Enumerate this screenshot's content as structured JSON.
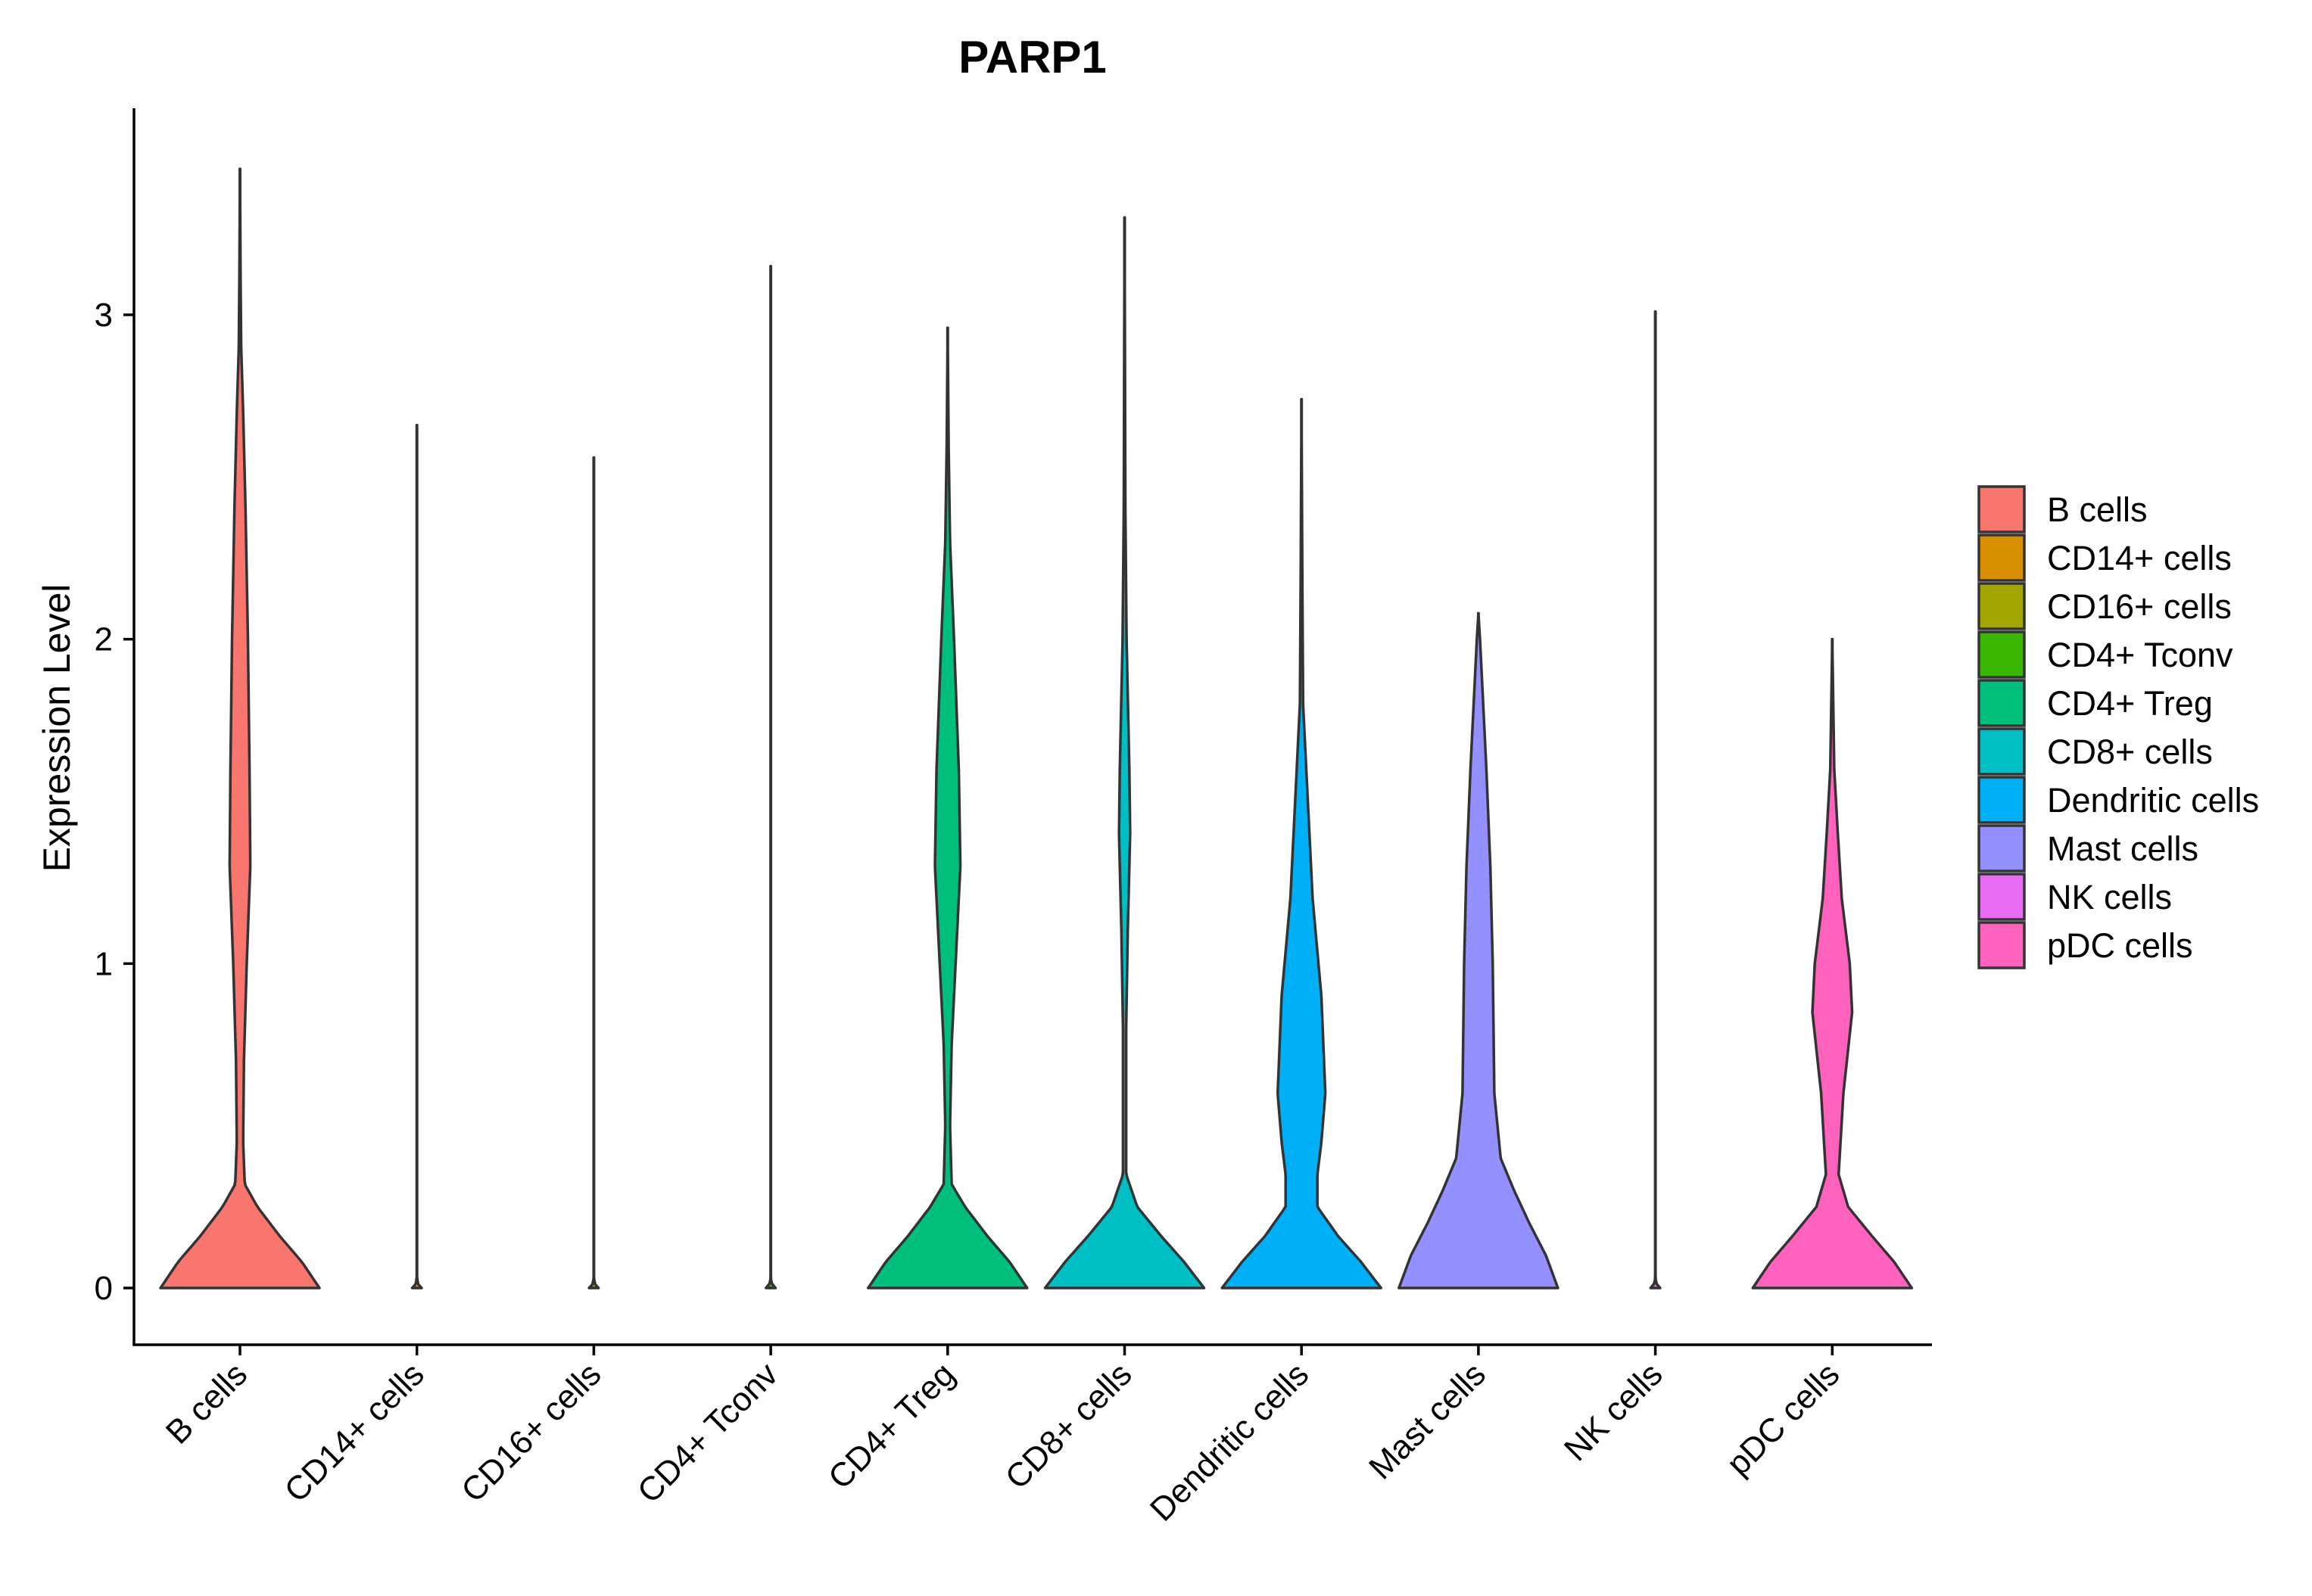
{
  "chart_data": {
    "type": "violin",
    "title": "PARP1",
    "xlabel": "",
    "ylabel": "Expression Level",
    "ylim": [
      -0.17,
      3.63
    ],
    "yticks": [
      0,
      1,
      2,
      3
    ],
    "yticks_labels": [
      "0",
      "1",
      "2",
      "3"
    ],
    "categories": [
      "B cells",
      "CD14+ cells",
      "CD16+ cells",
      "CD4+ Tconv",
      "CD4+ Treg",
      "CD8+ cells",
      "Dendritic cells",
      "Mast cells",
      "NK cells",
      "pDC cells"
    ],
    "colors": [
      "#F8766D",
      "#D89000",
      "#A3A500",
      "#39B600",
      "#00BF7D",
      "#00BFC4",
      "#00B0F6",
      "#9590FF",
      "#E76BF3",
      "#FF62BC"
    ],
    "violin_max": [
      3.45,
      2.66,
      2.56,
      3.15,
      2.96,
      3.3,
      2.74,
      2.08,
      3.01,
      2.0
    ],
    "density_profiles": [
      [
        [
          0,
          1.0
        ],
        [
          0.08,
          0.78
        ],
        [
          0.16,
          0.5
        ],
        [
          0.25,
          0.22
        ],
        [
          0.32,
          0.06
        ],
        [
          0.45,
          0.04
        ],
        [
          0.7,
          0.05
        ],
        [
          1.0,
          0.085
        ],
        [
          1.3,
          0.13
        ],
        [
          1.6,
          0.12
        ],
        [
          2.0,
          0.1
        ],
        [
          2.4,
          0.07
        ],
        [
          2.7,
          0.04
        ],
        [
          2.9,
          0.015
        ],
        [
          3.1,
          0.008
        ],
        [
          3.45,
          0.0
        ]
      ],
      [
        [
          0,
          0.06
        ],
        [
          0.01,
          0.02
        ],
        [
          0.03,
          0.0
        ],
        [
          2.66,
          0.0
        ]
      ],
      [
        [
          0,
          0.06
        ],
        [
          0.01,
          0.02
        ],
        [
          0.03,
          0.0
        ],
        [
          2.56,
          0.0
        ]
      ],
      [
        [
          0,
          0.06
        ],
        [
          0.01,
          0.02
        ],
        [
          0.03,
          0.0
        ],
        [
          3.15,
          0.0
        ]
      ],
      [
        [
          0,
          1.0
        ],
        [
          0.08,
          0.78
        ],
        [
          0.16,
          0.5
        ],
        [
          0.25,
          0.22
        ],
        [
          0.32,
          0.05
        ],
        [
          0.5,
          0.03
        ],
        [
          0.75,
          0.05
        ],
        [
          1.0,
          0.1
        ],
        [
          1.3,
          0.16
        ],
        [
          1.6,
          0.14
        ],
        [
          2.0,
          0.08
        ],
        [
          2.3,
          0.03
        ],
        [
          2.6,
          0.012
        ],
        [
          2.96,
          0.0
        ]
      ],
      [
        [
          0,
          1.0
        ],
        [
          0.08,
          0.75
        ],
        [
          0.16,
          0.46
        ],
        [
          0.25,
          0.16
        ],
        [
          0.35,
          0.02
        ],
        [
          0.8,
          0.02
        ],
        [
          1.1,
          0.04
        ],
        [
          1.4,
          0.07
        ],
        [
          1.6,
          0.06
        ],
        [
          2.0,
          0.025
        ],
        [
          2.4,
          0.01
        ],
        [
          3.3,
          0.0
        ]
      ],
      [
        [
          0,
          1.0
        ],
        [
          0.08,
          0.75
        ],
        [
          0.16,
          0.46
        ],
        [
          0.25,
          0.2
        ],
        [
          0.35,
          0.2
        ],
        [
          0.45,
          0.25
        ],
        [
          0.6,
          0.3
        ],
        [
          0.9,
          0.25
        ],
        [
          1.2,
          0.14
        ],
        [
          1.5,
          0.08
        ],
        [
          1.8,
          0.02
        ],
        [
          2.2,
          0.01
        ],
        [
          2.74,
          0.0
        ]
      ],
      [
        [
          0,
          1.0
        ],
        [
          0.1,
          0.85
        ],
        [
          0.2,
          0.64
        ],
        [
          0.3,
          0.45
        ],
        [
          0.4,
          0.28
        ],
        [
          0.6,
          0.2
        ],
        [
          1.0,
          0.18
        ],
        [
          1.3,
          0.15
        ],
        [
          1.6,
          0.1
        ],
        [
          1.8,
          0.06
        ],
        [
          2.0,
          0.02
        ],
        [
          2.08,
          0.0
        ]
      ],
      [
        [
          0,
          0.06
        ],
        [
          0.01,
          0.02
        ],
        [
          0.03,
          0.0
        ],
        [
          3.01,
          0.0
        ]
      ],
      [
        [
          0,
          1.0
        ],
        [
          0.08,
          0.78
        ],
        [
          0.16,
          0.5
        ],
        [
          0.25,
          0.2
        ],
        [
          0.35,
          0.08
        ],
        [
          0.6,
          0.14
        ],
        [
          0.85,
          0.25
        ],
        [
          1.0,
          0.22
        ],
        [
          1.2,
          0.12
        ],
        [
          1.4,
          0.07
        ],
        [
          1.6,
          0.025
        ],
        [
          2.0,
          0.0
        ]
      ]
    ],
    "legend": {
      "position": "right",
      "entries": [
        "B cells",
        "CD14+ cells",
        "CD16+ cells",
        "CD4+ Tconv",
        "CD4+ Treg",
        "CD8+ cells",
        "Dendritic cells",
        "Mast cells",
        "NK cells",
        "pDC cells"
      ]
    },
    "grid": false
  }
}
